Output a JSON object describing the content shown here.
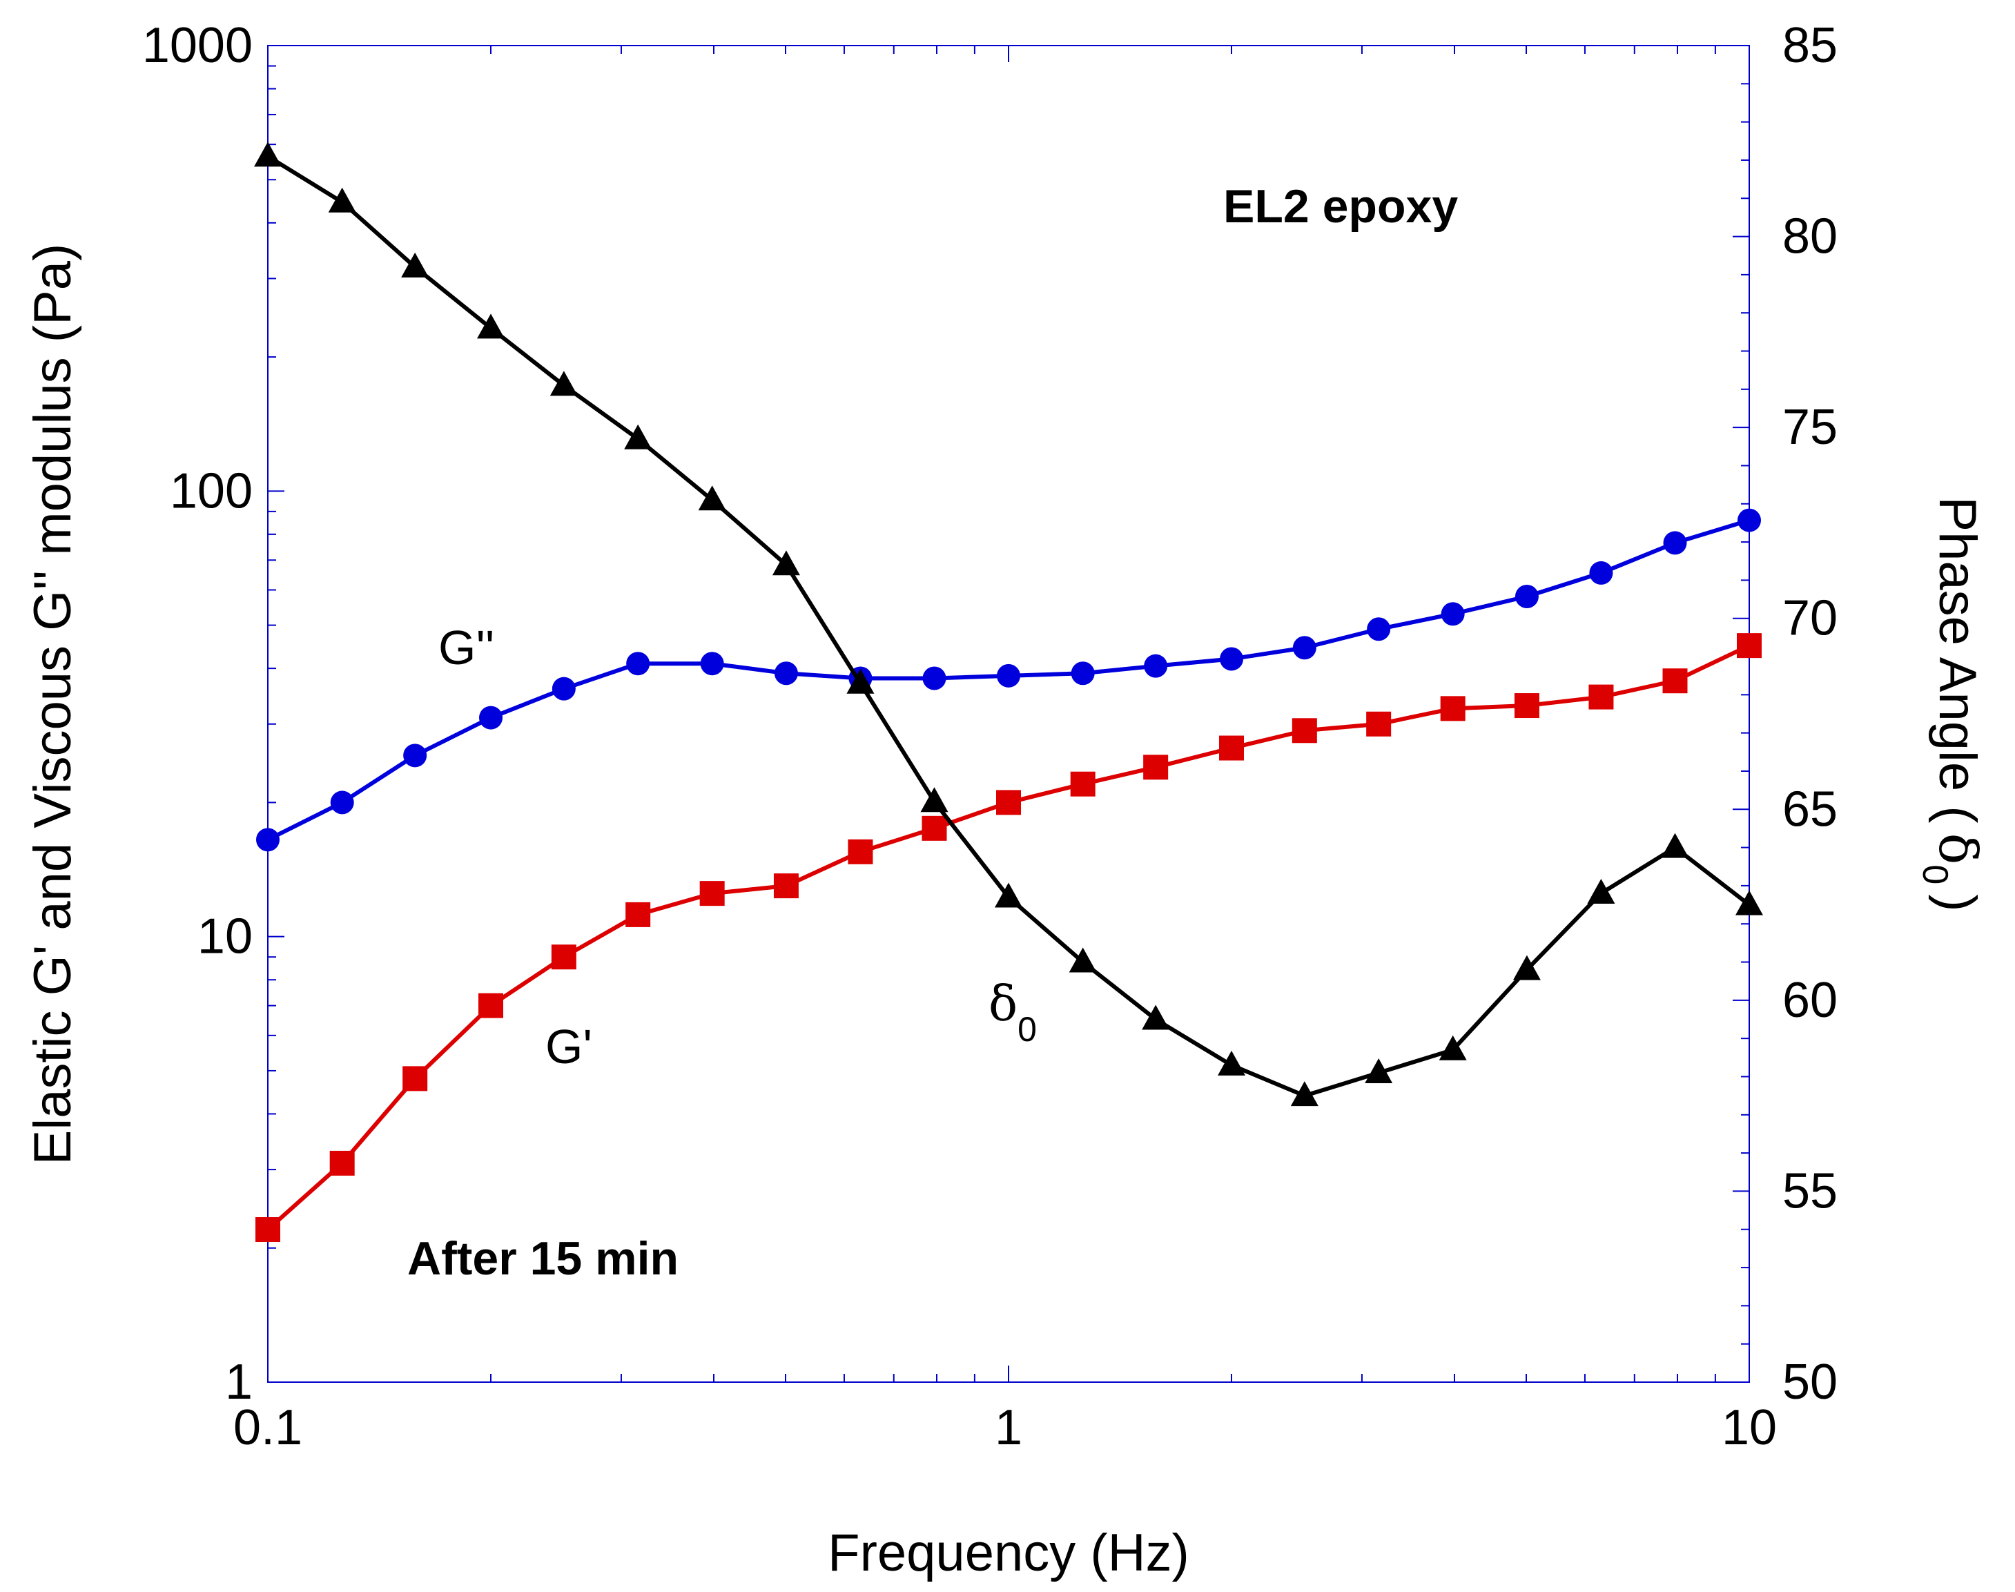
{
  "chart_data": {
    "type": "line",
    "x_scale": "log",
    "xlabel": "Frequency (Hz)",
    "ylabel_left": "Elastic G' and Viscous G'' modulus (Pa)",
    "ylabel_right_main": "Phase Angle (",
    "ylabel_right_symbol": "δ",
    "ylabel_right_sub": "0",
    "ylabel_right_close": ")",
    "xlim": [
      0.1,
      10
    ],
    "ylim_left": [
      1,
      1000
    ],
    "ylim_right": [
      50,
      85
    ],
    "x_ticks": [
      0.1,
      1,
      10
    ],
    "x_tick_labels": [
      "0.1",
      "1",
      "10"
    ],
    "y_left_ticks": [
      1,
      10,
      100,
      1000
    ],
    "y_left_tick_labels": [
      "1",
      "10",
      "100",
      "1000"
    ],
    "y_right_ticks": [
      50,
      55,
      60,
      65,
      70,
      75,
      80,
      85
    ],
    "y_right_tick_labels": [
      "50",
      "55",
      "60",
      "65",
      "70",
      "75",
      "80",
      "85"
    ],
    "frame_color": "#0000cc",
    "x": [
      0.1,
      0.126,
      0.158,
      0.2,
      0.251,
      0.316,
      0.398,
      0.501,
      0.631,
      0.794,
      1.0,
      1.26,
      1.58,
      2.0,
      2.51,
      3.16,
      3.98,
      5.01,
      6.31,
      7.94,
      10.0
    ],
    "series": [
      {
        "name": "G''",
        "axis": "left",
        "marker": "circle",
        "color": "#0000dd",
        "values": [
          16.5,
          20,
          25.5,
          31,
          36,
          41,
          41,
          39,
          38,
          38,
          38.5,
          39,
          40.5,
          42,
          44.5,
          49,
          53,
          58,
          65.5,
          76.5,
          86
        ]
      },
      {
        "name": "G'",
        "axis": "left",
        "marker": "square",
        "color": "#dd0000",
        "values": [
          2.2,
          3.1,
          4.8,
          7,
          9,
          11.2,
          12.5,
          13,
          15.5,
          17.5,
          20,
          22,
          24,
          26.5,
          29,
          30,
          32.5,
          33,
          34.5,
          37.5,
          45
        ]
      },
      {
        "name": "δ0",
        "axis": "right",
        "marker": "triangle",
        "color": "#000000",
        "values": [
          82.1,
          80.9,
          79.2,
          77.6,
          76.1,
          74.7,
          73.1,
          71.4,
          68.3,
          65.2,
          62.7,
          61.0,
          59.5,
          58.3,
          57.5,
          58.1,
          58.7,
          60.8,
          62.8,
          64.0,
          62.5
        ]
      }
    ],
    "annotations": {
      "g_double_prime": "G''",
      "g_prime": "G'",
      "delta_symbol": "δ",
      "delta_sub": "0",
      "material": "EL2 epoxy",
      "time": "After 15 min"
    }
  }
}
